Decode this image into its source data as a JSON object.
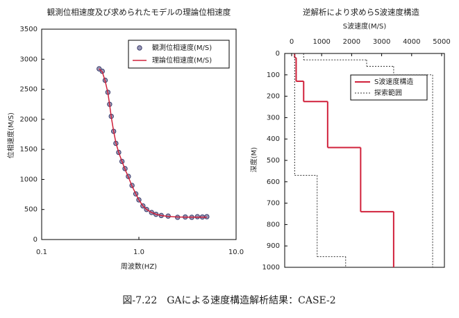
{
  "chart_data": [
    {
      "type": "scatter",
      "title": "観測位相速度及び求められたモデルの理論位相速度",
      "xlabel": "周波数(HZ)",
      "ylabel": "位相速度(M/S)",
      "xscale": "log",
      "xlim": [
        0.1,
        10
      ],
      "xticks": [
        0.1,
        {
          "value": 1,
          "label": "1.0"
        },
        {
          "value": 10,
          "label": "10.0"
        }
      ],
      "ylim": [
        0,
        3500
      ],
      "yticks": [
        0,
        500,
        1000,
        1500,
        2000,
        2500,
        3000,
        3500
      ],
      "legend": "upper right",
      "x": [
        0.39,
        0.42,
        0.45,
        0.48,
        0.5,
        0.52,
        0.55,
        0.58,
        0.62,
        0.67,
        0.72,
        0.78,
        0.85,
        0.93,
        1.0,
        1.1,
        1.2,
        1.35,
        1.5,
        1.7,
        2.0,
        2.5,
        3.0,
        3.5,
        4.0,
        4.5,
        5.0
      ],
      "series": [
        {
          "name": "観測位相速度(M/S)",
          "color": "#3a3a6a",
          "marker": "circle",
          "values": [
            2840,
            2800,
            2650,
            2450,
            2250,
            2050,
            1800,
            1600,
            1450,
            1300,
            1180,
            1050,
            900,
            760,
            660,
            560,
            500,
            450,
            420,
            400,
            390,
            370,
            375,
            370,
            380,
            375,
            380
          ]
        },
        {
          "name": "理論位相速度(M/S)",
          "color": "#d0203a",
          "marker": "line",
          "values": [
            2840,
            2790,
            2640,
            2440,
            2240,
            2040,
            1800,
            1610,
            1450,
            1300,
            1170,
            1040,
            890,
            760,
            660,
            560,
            500,
            450,
            420,
            400,
            385,
            375,
            372,
            372,
            372,
            372,
            372
          ]
        }
      ]
    },
    {
      "type": "step",
      "title": "逆解析により求めらS波速度構造",
      "xlabel": "S波速度(M/S)",
      "ylabel": "深度(M)",
      "xlim": [
        0,
        5000
      ],
      "xticks": [
        0,
        1000,
        2000,
        3000,
        4000,
        5000
      ],
      "ylim": [
        0,
        1000
      ],
      "yticks": [
        0,
        100,
        200,
        300,
        400,
        500,
        600,
        700,
        800,
        900,
        1000
      ],
      "legend": "upper right",
      "series": [
        {
          "name": "S波速度構造",
          "color": "#d0203a",
          "style": "solid",
          "parts": [
            {
              "boundaries": [
                0,
                20,
                130,
                225,
                440,
                740,
                1000
              ],
              "values": [
                100,
                150,
                400,
                1200,
                2300,
                3400
              ]
            }
          ]
        },
        {
          "name": "探索範囲",
          "color": "#333333",
          "style": "dotted",
          "parts": [
            {
              "boundaries": [
                0,
                570,
                950,
                1000
              ],
              "values": [
                100,
                850,
                1800
              ]
            },
            {
              "boundaries": [
                0,
                30,
                60,
                100,
                1000
              ],
              "values": [
                400,
                2500,
                3400,
                4700
              ]
            }
          ]
        }
      ]
    }
  ],
  "caption": "図-7.22　GAによる速度構造解析結果：CASE-2"
}
